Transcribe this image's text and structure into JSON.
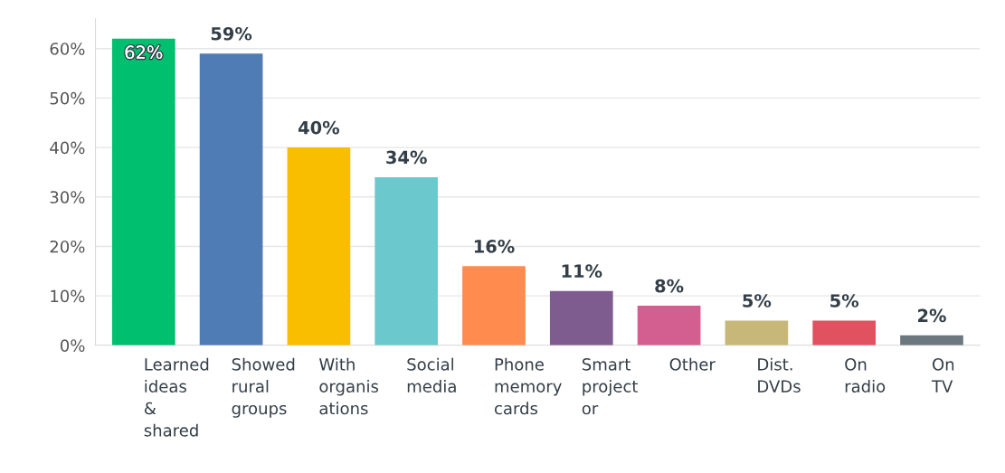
{
  "chart_data": {
    "type": "bar",
    "categories": [
      "Learned\nideas\n&\nshared",
      "Showed\nrural\ngroups",
      "With\norganis\nations",
      "Social\nmedia",
      "Phone\nmemory\ncards",
      "Smart\nproject\nor",
      "Other",
      "Dist.\nDVDs",
      "On\nradio",
      "On\nTV"
    ],
    "values": [
      62,
      59,
      40,
      34,
      16,
      11,
      8,
      5,
      5,
      2
    ],
    "value_labels": [
      "62%",
      "59%",
      "40%",
      "34%",
      "16%",
      "11%",
      "8%",
      "5%",
      "5%",
      "2%"
    ],
    "colors": [
      "#00bf6f",
      "#507cb6",
      "#f9be00",
      "#6bc8cd",
      "#ff8b4f",
      "#7f5c8f",
      "#d25f90",
      "#c7b879",
      "#e05260",
      "#6b787f"
    ],
    "ylim": [
      0,
      66
    ],
    "yticks": [
      {
        "value": 0,
        "label": "0%"
      },
      {
        "value": 10,
        "label": "10%"
      },
      {
        "value": 20,
        "label": "20%"
      },
      {
        "value": 30,
        "label": "30%"
      },
      {
        "value": 40,
        "label": "40%"
      },
      {
        "value": 50,
        "label": "50%"
      },
      {
        "value": 60,
        "label": "60%"
      }
    ],
    "grid": "y"
  }
}
